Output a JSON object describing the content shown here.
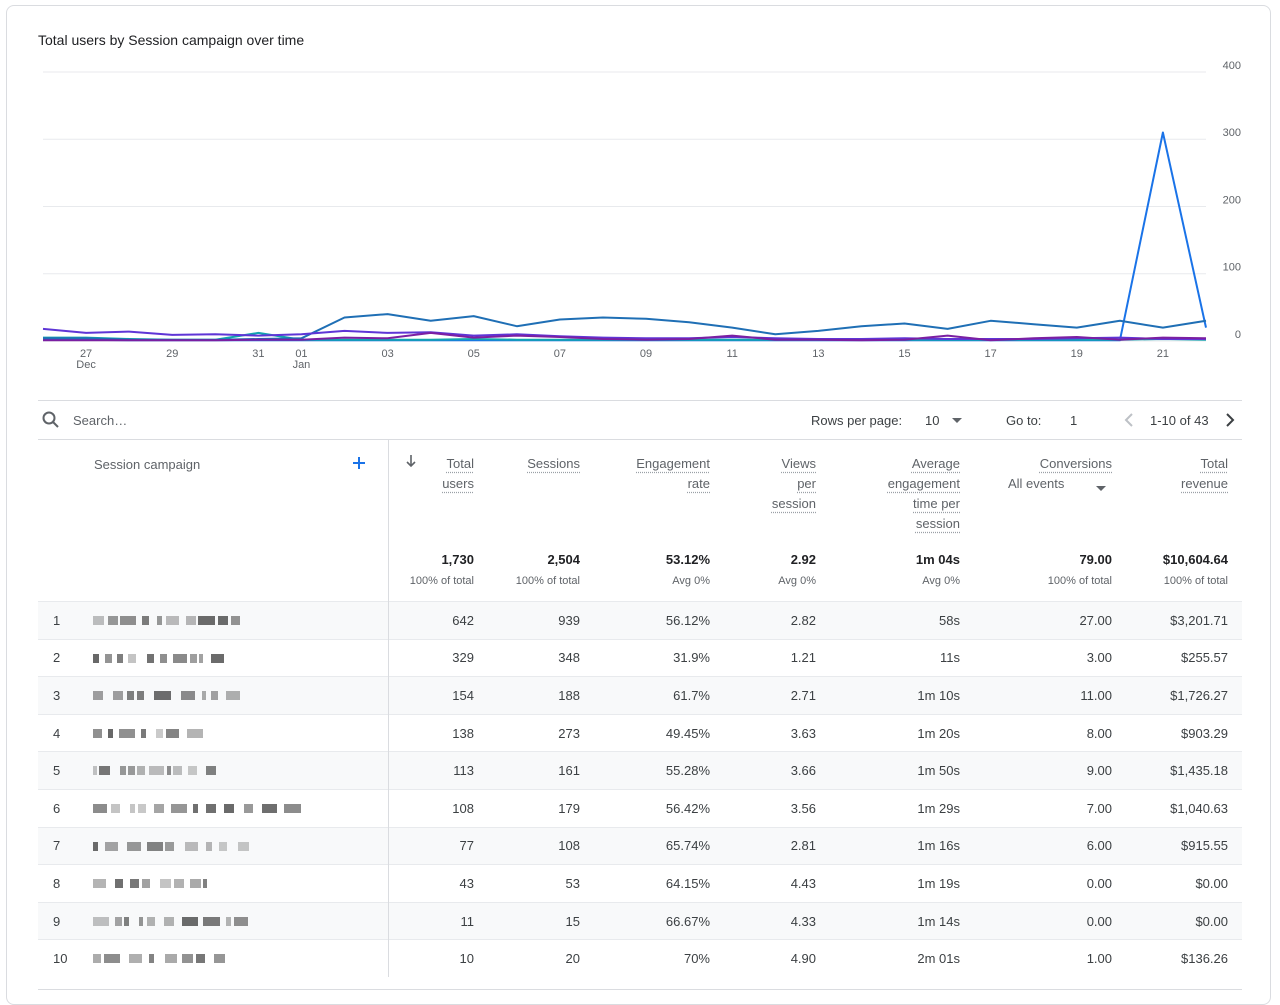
{
  "chart_data": {
    "type": "line",
    "title": "Total users by Session campaign over time",
    "categories": [
      null,
      "27\nDec",
      null,
      "29",
      null,
      "31",
      "01\nJan",
      null,
      "03",
      null,
      "05",
      null,
      "07",
      null,
      "09",
      null,
      "11",
      null,
      "13",
      null,
      "15",
      null,
      "17",
      null,
      "19",
      null,
      "21",
      null
    ],
    "series": [
      {
        "color": "#1a73e8",
        "values": [
          2,
          2,
          1,
          1,
          1,
          1,
          1,
          1,
          1,
          1,
          1,
          1,
          1,
          1,
          1,
          1,
          1,
          1,
          1,
          1,
          1,
          1,
          1,
          1,
          1,
          1,
          310,
          20
        ]
      },
      {
        "color": "#12a4af",
        "values": [
          5,
          5,
          3,
          2,
          2,
          12,
          2,
          2,
          2,
          2,
          3,
          2,
          2,
          2,
          2,
          2,
          2,
          2,
          2,
          2,
          2,
          2,
          2,
          2,
          2,
          2,
          3,
          2
        ]
      },
      {
        "color": "#1f6fb5",
        "values": [
          4,
          4,
          2,
          2,
          2,
          3,
          4,
          35,
          40,
          30,
          37,
          22,
          32,
          35,
          33,
          28,
          20,
          10,
          15,
          22,
          26,
          18,
          30,
          25,
          20,
          30,
          20,
          30
        ]
      },
      {
        "color": "#5e35d6",
        "values": [
          18,
          12,
          14,
          9,
          10,
          8,
          10,
          15,
          12,
          13,
          8,
          10,
          7,
          5,
          4,
          4,
          6,
          4,
          3,
          3,
          4,
          3,
          3,
          3,
          4,
          5,
          3,
          3
        ]
      },
      {
        "color": "#7b1fa2",
        "values": [
          1,
          1,
          1,
          1,
          1,
          2,
          2,
          5,
          4,
          12,
          5,
          8,
          6,
          3,
          2,
          3,
          8,
          2,
          2,
          1,
          2,
          8,
          1,
          4,
          6,
          2,
          5,
          4
        ]
      }
    ],
    "ylim": [
      0,
      400
    ],
    "yticks": [
      0,
      100,
      200,
      300,
      400
    ],
    "grid": true
  },
  "toolbar": {
    "search": "Search…",
    "rows_label": "Rows per page:",
    "rows_value": "10",
    "goto_label": "Go to:",
    "goto_value": "1",
    "range": "1-10 of 43"
  },
  "table": {
    "columns": [
      "Session campaign",
      "Total users",
      "Sessions",
      "Engagement rate",
      "Views per session",
      "Average engagement time per session",
      "Conversions",
      "Total revenue"
    ],
    "conversions_filter": "All events",
    "totals": [
      [
        "1,730",
        "100% of total"
      ],
      [
        "2,504",
        "100% of total"
      ],
      [
        "53.12%",
        "Avg 0%"
      ],
      [
        "2.92",
        "Avg 0%"
      ],
      [
        "1m 04s",
        "Avg 0%"
      ],
      [
        "79.00",
        "100% of total"
      ],
      [
        "$10,604.64",
        "100% of total"
      ]
    ],
    "rows": [
      [
        "1",
        "642",
        "939",
        "56.12%",
        "2.82",
        "58s",
        "27.00",
        "$3,201.71"
      ],
      [
        "2",
        "329",
        "348",
        "31.9%",
        "1.21",
        "11s",
        "3.00",
        "$255.57"
      ],
      [
        "3",
        "154",
        "188",
        "61.7%",
        "2.71",
        "1m 10s",
        "11.00",
        "$1,726.27"
      ],
      [
        "4",
        "138",
        "273",
        "49.45%",
        "3.63",
        "1m 20s",
        "8.00",
        "$903.29"
      ],
      [
        "5",
        "113",
        "161",
        "55.28%",
        "3.66",
        "1m 50s",
        "9.00",
        "$1,435.18"
      ],
      [
        "6",
        "108",
        "179",
        "56.42%",
        "3.56",
        "1m 29s",
        "7.00",
        "$1,040.63"
      ],
      [
        "7",
        "77",
        "108",
        "65.74%",
        "2.81",
        "1m 16s",
        "6.00",
        "$915.55"
      ],
      [
        "8",
        "43",
        "53",
        "64.15%",
        "4.43",
        "1m 19s",
        "0.00",
        "$0.00"
      ],
      [
        "9",
        "11",
        "15",
        "66.67%",
        "4.33",
        "1m 14s",
        "0.00",
        "$0.00"
      ],
      [
        "10",
        "10",
        "20",
        "70%",
        "4.90",
        "2m 01s",
        "1.00",
        "$136.26"
      ]
    ]
  }
}
